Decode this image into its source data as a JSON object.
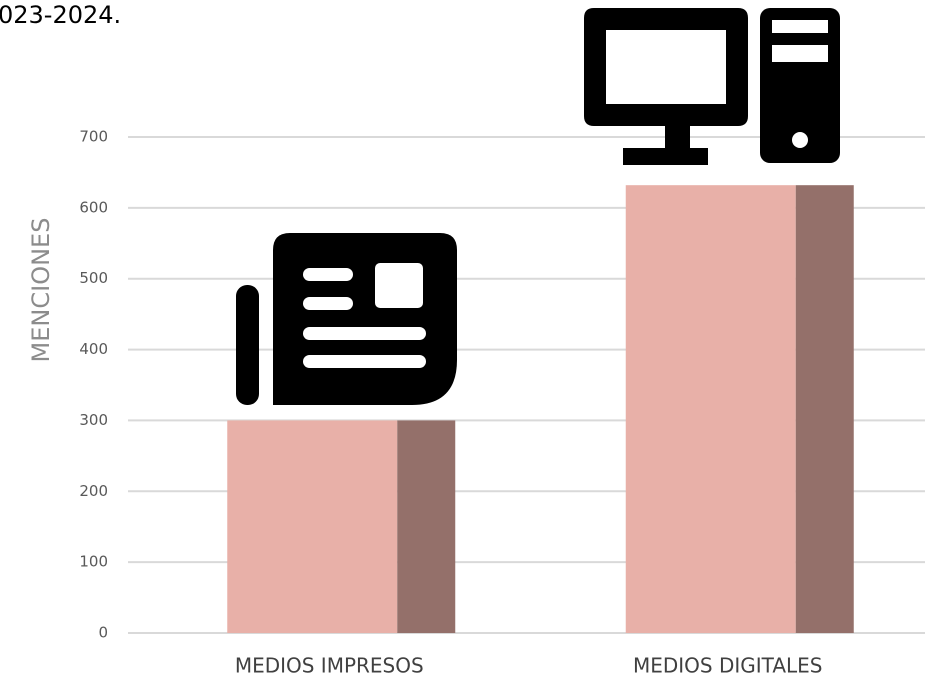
{
  "chart_data": {
    "type": "bar",
    "title": "023-2024.",
    "y_label": "MENCIONES",
    "categories": [
      "MEDIOS IMPRESOS",
      "MEDIOS DIGITALES"
    ],
    "values": [
      300,
      632
    ],
    "color": "#e8b0a8",
    "side_color": "#94706a",
    "ylim": [
      0,
      700
    ],
    "yticks": [
      0,
      100,
      200,
      300,
      400,
      500,
      600,
      700
    ],
    "grid": true
  }
}
